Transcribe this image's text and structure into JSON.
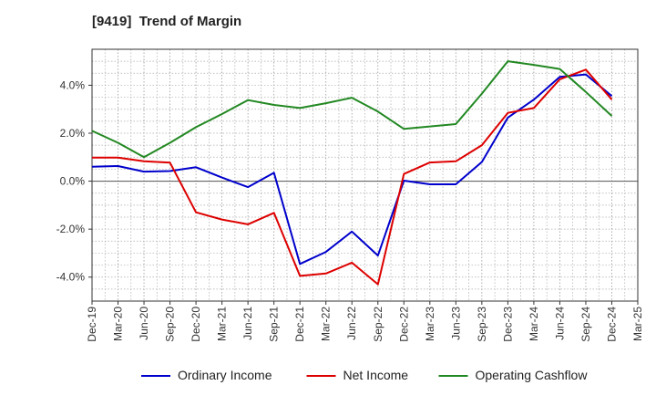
{
  "chart_data": {
    "type": "line",
    "title": "[9419]  Trend of Margin",
    "x": [
      "Dec-19",
      "Mar-20",
      "Jun-20",
      "Sep-20",
      "Dec-20",
      "Mar-21",
      "Jun-21",
      "Sep-21",
      "Dec-21",
      "Mar-22",
      "Jun-22",
      "Sep-22",
      "Dec-22",
      "Mar-23",
      "Jun-23",
      "Sep-23",
      "Dec-23",
      "Mar-24",
      "Jun-24",
      "Sep-24",
      "Dec-24",
      "Mar-25"
    ],
    "ytick_labels": [
      "4.0%",
      "2.0%",
      "0.0%",
      "-2.0%",
      "-4.0%"
    ],
    "yticks": [
      4,
      2,
      0,
      -2,
      -4
    ],
    "ylim": [
      -5.0,
      5.5
    ],
    "grid": true,
    "legend_position": "bottom",
    "series": [
      {
        "name": "Ordinary Income",
        "color": "#0000cc",
        "values": [
          0.6,
          0.63,
          0.4,
          0.42,
          0.58,
          0.15,
          -0.25,
          0.35,
          -3.45,
          -2.95,
          -2.1,
          -3.1,
          0.02,
          -0.13,
          -0.13,
          0.8,
          2.65,
          3.4,
          4.35,
          4.45,
          3.55,
          null
        ]
      },
      {
        "name": "Net Income",
        "color": "#dd0000",
        "values": [
          0.98,
          0.98,
          0.83,
          0.77,
          -1.3,
          -1.6,
          -1.8,
          -1.32,
          -3.95,
          -3.85,
          -3.4,
          -4.3,
          0.3,
          0.78,
          0.83,
          1.5,
          2.85,
          3.05,
          4.25,
          4.65,
          3.4,
          null
        ]
      },
      {
        "name": "Operating Cashflow",
        "color": "#228822",
        "values": [
          2.1,
          1.6,
          1.0,
          1.6,
          2.25,
          2.8,
          3.38,
          3.18,
          3.05,
          3.25,
          3.48,
          2.9,
          2.18,
          2.28,
          2.38,
          3.65,
          5.0,
          4.85,
          4.68,
          3.72,
          2.72,
          null
        ]
      }
    ]
  }
}
